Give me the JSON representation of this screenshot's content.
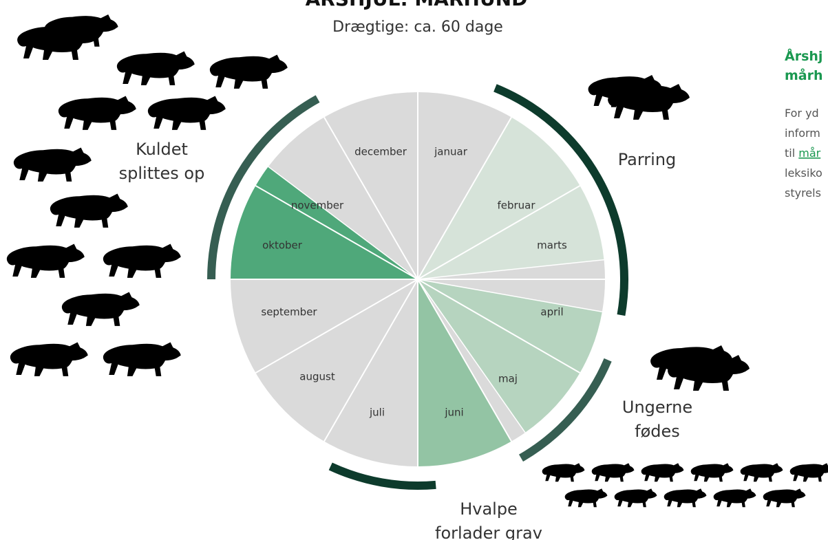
{
  "title": "ÅRSHJUL: MÅRHUND",
  "subtitle": "Drægtige: ca. 60 dage",
  "months": [
    "januar",
    "februar",
    "marts",
    "april",
    "maj",
    "juni",
    "juli",
    "august",
    "september",
    "oktober",
    "november",
    "december"
  ],
  "phases": [
    {
      "lines": [
        "Parring"
      ]
    },
    {
      "lines": [
        "Ungerne",
        "fødes"
      ]
    },
    {
      "lines": [
        "Hvalpe",
        "forlader grav"
      ]
    },
    {
      "lines": [
        "Kuldet",
        "splittes op"
      ]
    }
  ],
  "sidebar": {
    "heading": [
      "Årshj",
      "mårh"
    ],
    "body": [
      "For yd",
      "inform",
      "til",
      "leksiko",
      "styrels"
    ],
    "link": "mår"
  }
}
